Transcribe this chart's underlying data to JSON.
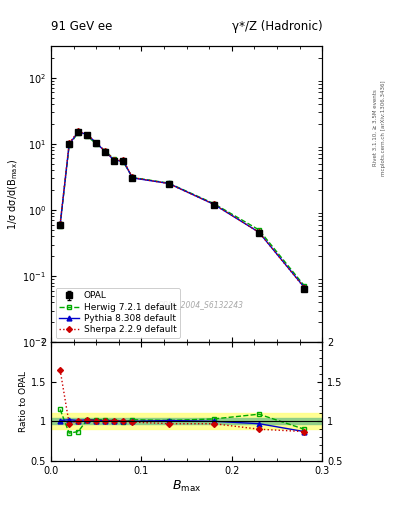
{
  "title_left": "91 GeV ee",
  "title_right": "γ*/Z (Hadronic)",
  "ylabel_main": "1/σ dσ/d(B_max)",
  "ylabel_ratio": "Ratio to OPAL",
  "xlabel": "$B_{\\mathrm{max}}$",
  "right_label_top": "Rivet 3.1.10, ≥ 3.5M events",
  "right_label_bot": "mcplots.cern.ch [arXiv:1306.3436]",
  "watermark": "OPAL_2004_S6132243",
  "bmax": [
    0.01,
    0.02,
    0.03,
    0.04,
    0.05,
    0.06,
    0.07,
    0.08,
    0.09,
    0.13,
    0.18,
    0.23,
    0.28
  ],
  "opal_y": [
    0.6,
    9.8,
    15.0,
    13.5,
    10.2,
    7.5,
    5.5,
    5.5,
    3.0,
    2.5,
    1.2,
    0.45,
    0.065
  ],
  "opal_yerr": [
    0.05,
    0.4,
    0.5,
    0.5,
    0.4,
    0.3,
    0.3,
    0.3,
    0.2,
    0.1,
    0.05,
    0.03,
    0.005
  ],
  "herwig_y": [
    0.58,
    9.5,
    14.8,
    13.0,
    10.0,
    7.8,
    5.8,
    5.3,
    3.1,
    2.55,
    1.25,
    0.5,
    0.072
  ],
  "pythia_y": [
    0.6,
    9.8,
    15.2,
    13.8,
    10.3,
    7.6,
    5.6,
    5.5,
    3.05,
    2.52,
    1.22,
    0.46,
    0.068
  ],
  "sherpa_y": [
    0.62,
    10.2,
    15.5,
    13.8,
    10.4,
    7.7,
    5.7,
    5.6,
    3.1,
    2.5,
    1.22,
    0.46,
    0.067
  ],
  "herwig_ratio": [
    1.15,
    0.85,
    0.87,
    1.02,
    1.02,
    1.02,
    1.01,
    0.99,
    1.02,
    1.01,
    1.03,
    1.09,
    0.9
  ],
  "pythia_ratio": [
    1.01,
    1.02,
    1.01,
    1.02,
    1.01,
    1.01,
    1.01,
    1.0,
    1.0,
    1.01,
    1.0,
    0.97,
    0.87
  ],
  "sherpa_ratio": [
    1.65,
    0.97,
    1.01,
    1.02,
    1.01,
    1.01,
    1.01,
    1.01,
    0.99,
    0.97,
    0.97,
    0.9,
    0.87
  ],
  "opal_color": "#000000",
  "herwig_color": "#00aa00",
  "pythia_color": "#0000cc",
  "sherpa_color": "#cc0000",
  "ylim_main": [
    0.01,
    300
  ],
  "ylim_ratio": [
    0.5,
    2.0
  ],
  "xlim": [
    0.0,
    0.3
  ]
}
